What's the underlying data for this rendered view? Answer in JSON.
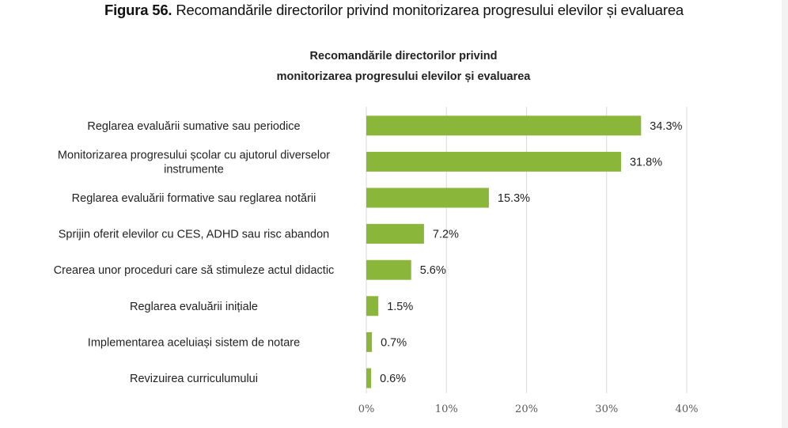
{
  "figure_caption": {
    "number": "Figura 56.",
    "text": " Recomandările directorilor privind monitorizarea progresului elevilor și evaluarea"
  },
  "chart_data": {
    "type": "bar",
    "orientation": "horizontal",
    "title_lines": [
      "Recomandările directorilor  privind",
      "monitorizarea  progresului elevilor  și evaluarea"
    ],
    "categories": [
      "Reglarea evaluării sumative sau periodice",
      "Monitorizarea progresului școlar cu ajutorul diverselor instrumente",
      "Reglarea evaluării formative sau reglarea notării",
      "Sprijin oferit elevilor cu CES, ADHD sau risc abandon",
      "Crearea unor proceduri care să stimuleze actul didactic",
      "Reglarea evaluării inițiale",
      "Implementarea aceluiași sistem de notare",
      "Revizuirea curriculumului"
    ],
    "category_lines": [
      [
        "Reglarea evaluării sumative sau periodice"
      ],
      [
        "Monitorizarea progresului școlar cu ajutorul diverselor",
        "instrumente"
      ],
      [
        "Reglarea evaluării formative sau reglarea notării"
      ],
      [
        "Sprijin oferit elevilor cu CES, ADHD sau risc abandon"
      ],
      [
        "Crearea unor proceduri care să stimuleze actul didactic"
      ],
      [
        "Reglarea evaluării inițiale"
      ],
      [
        "Implementarea aceluiași sistem de notare"
      ],
      [
        "Revizuirea curriculumului"
      ]
    ],
    "values": [
      34.3,
      31.8,
      15.3,
      7.2,
      5.6,
      1.5,
      0.7,
      0.6
    ],
    "value_labels": [
      "34.3%",
      "31.8%",
      "15.3%",
      "7.2%",
      "5.6%",
      "1.5%",
      "0.7%",
      "0.6%"
    ],
    "xlim": [
      0,
      40
    ],
    "x_ticks": [
      0,
      10,
      20,
      30,
      40
    ],
    "x_tick_labels": [
      "0%",
      "10%",
      "20%",
      "30%",
      "40%"
    ],
    "grid": "vertical",
    "bar_color": "#8ab63a",
    "grid_color": "#d9d9d9"
  }
}
